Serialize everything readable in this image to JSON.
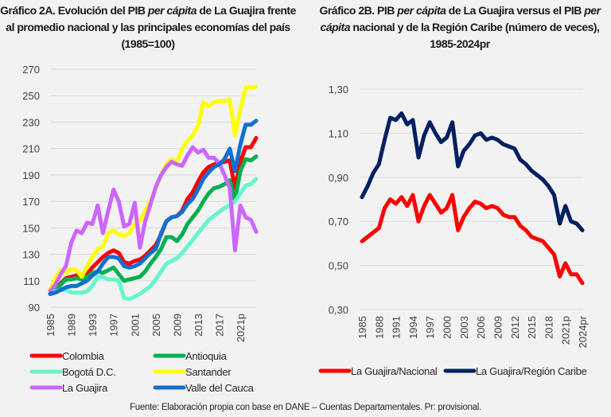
{
  "chart_data": [
    {
      "type": "line",
      "title_parts": [
        "Gráfico 2A. Evolución del PIB ",
        "per cápita",
        " de La Guajira frente al promedio nacional y las principales economías del país (1985=100)"
      ],
      "xlabel": "",
      "ylabel": "",
      "x": [
        1985,
        1986,
        1987,
        1988,
        1989,
        1990,
        1991,
        1992,
        1993,
        1994,
        1995,
        1996,
        1997,
        1998,
        1999,
        2000,
        2001,
        2002,
        2003,
        2004,
        2005,
        2006,
        2007,
        2008,
        2009,
        2010,
        2011,
        2012,
        2013,
        2014,
        2015,
        2016,
        2017,
        2018,
        2019,
        2020,
        2021,
        2022,
        2023,
        2024
      ],
      "xtick_labels": [
        "1985",
        "1989",
        "1993",
        "1997",
        "2001",
        "2005",
        "2009",
        "2013",
        "2017",
        "2021p"
      ],
      "xtick_positions": [
        1985,
        1989,
        1993,
        1997,
        2001,
        2005,
        2009,
        2013,
        2017,
        2021
      ],
      "ylim": [
        90,
        270
      ],
      "yticks": [
        90,
        110,
        130,
        150,
        170,
        190,
        210,
        230,
        250,
        270
      ],
      "ytick_labels": [
        "90",
        "110",
        "130",
        "150",
        "170",
        "190",
        "210",
        "230",
        "250",
        "270"
      ],
      "grid": true,
      "legend_position": "bottom",
      "series": [
        {
          "name": "Colombia",
          "color": "#ff0000",
          "values": [
            100,
            103,
            108,
            112,
            113,
            114,
            112,
            115,
            120,
            124,
            128,
            131,
            133,
            131,
            124,
            123,
            125,
            126,
            129,
            133,
            137,
            145,
            155,
            158,
            159,
            163,
            172,
            177,
            185,
            192,
            196,
            198,
            199,
            200,
            201,
            180,
            200,
            211,
            211,
            218
          ]
        },
        {
          "name": "Antioquia",
          "color": "#00b050",
          "values": [
            100,
            103,
            107,
            111,
            111,
            112,
            111,
            113,
            116,
            117,
            116,
            118,
            120,
            115,
            110,
            111,
            112,
            113,
            117,
            123,
            128,
            134,
            143,
            143,
            140,
            145,
            153,
            158,
            163,
            170,
            176,
            180,
            181,
            183,
            186,
            171,
            193,
            202,
            201,
            204
          ]
        },
        {
          "name": "Bogotá D.C.",
          "color": "#66f5cc",
          "values": [
            100,
            102,
            103,
            103,
            101,
            101,
            101,
            102,
            106,
            113,
            113,
            111,
            111,
            110,
            97,
            96,
            98,
            100,
            103,
            106,
            111,
            117,
            123,
            125,
            127,
            131,
            136,
            141,
            146,
            151,
            156,
            159,
            162,
            165,
            167,
            170,
            176,
            182,
            183,
            187
          ]
        },
        {
          "name": "Santander",
          "color": "#ffff00",
          "values": [
            103,
            112,
            118,
            116,
            119,
            118,
            113,
            121,
            128,
            134,
            136,
            146,
            148,
            145,
            144,
            146,
            153,
            155,
            163,
            170,
            180,
            190,
            198,
            202,
            200,
            210,
            216,
            220,
            227,
            245,
            242,
            245,
            246,
            246,
            247,
            220,
            240,
            256,
            256,
            257
          ]
        },
        {
          "name": "La Guajira",
          "color": "#cc66ff",
          "values": [
            102,
            107,
            115,
            121,
            139,
            148,
            146,
            154,
            153,
            167,
            146,
            163,
            179,
            170,
            151,
            153,
            169,
            135,
            155,
            168,
            181,
            190,
            196,
            200,
            198,
            197,
            205,
            211,
            207,
            209,
            203,
            203,
            199,
            190,
            180,
            133,
            167,
            158,
            156,
            147
          ]
        },
        {
          "name": "Valle del Cauca",
          "color": "#1070d0",
          "values": [
            100,
            101,
            103,
            105,
            106,
            106,
            108,
            110,
            114,
            117,
            123,
            128,
            128,
            127,
            121,
            120,
            121,
            123,
            127,
            131,
            134,
            146,
            155,
            158,
            159,
            162,
            168,
            172,
            179,
            187,
            192,
            196,
            198,
            202,
            210,
            193,
            213,
            228,
            228,
            231
          ]
        }
      ]
    },
    {
      "type": "line",
      "title_parts": [
        "Gráfico 2B. PIB ",
        "per cápita",
        " de La Guajira versus el PIB ",
        "per cápita",
        " nacional y de la Región Caribe (número de veces), 1985-2024pr"
      ],
      "xlabel": "",
      "ylabel": "",
      "x": [
        1985,
        1986,
        1987,
        1988,
        1989,
        1990,
        1991,
        1992,
        1993,
        1994,
        1995,
        1996,
        1997,
        1998,
        1999,
        2000,
        2001,
        2002,
        2003,
        2004,
        2005,
        2006,
        2007,
        2008,
        2009,
        2010,
        2011,
        2012,
        2013,
        2014,
        2015,
        2016,
        2017,
        2018,
        2019,
        2020,
        2021,
        2022,
        2023,
        2024
      ],
      "xtick_labels": [
        "1985",
        "1988",
        "1991",
        "1994",
        "1997",
        "2000",
        "2003",
        "2006",
        "2009",
        "2012",
        "2015",
        "2018",
        "2021p",
        "2024pr"
      ],
      "xtick_positions": [
        1985,
        1988,
        1991,
        1994,
        1997,
        2000,
        2003,
        2006,
        2009,
        2012,
        2015,
        2018,
        2021,
        2024
      ],
      "ylim": [
        0.3,
        1.3
      ],
      "yticks": [
        0.3,
        0.5,
        0.7,
        0.9,
        1.1,
        1.3
      ],
      "ytick_labels": [
        "0,30",
        "0,50",
        "0,70",
        "0,90",
        "1,10",
        "1,30"
      ],
      "grid": true,
      "legend_position": "bottom",
      "series": [
        {
          "name": "La Guajira/Nacional",
          "color": "#ff0000",
          "values": [
            0.61,
            0.63,
            0.65,
            0.67,
            0.76,
            0.8,
            0.78,
            0.81,
            0.77,
            0.82,
            0.7,
            0.77,
            0.82,
            0.78,
            0.74,
            0.76,
            0.82,
            0.66,
            0.72,
            0.76,
            0.79,
            0.78,
            0.76,
            0.77,
            0.76,
            0.73,
            0.72,
            0.72,
            0.68,
            0.66,
            0.63,
            0.62,
            0.61,
            0.58,
            0.55,
            0.45,
            0.51,
            0.46,
            0.46,
            0.42
          ]
        },
        {
          "name": "La Guajira/Región Caribe",
          "color": "#002060",
          "values": [
            0.81,
            0.86,
            0.92,
            0.96,
            1.07,
            1.17,
            1.16,
            1.19,
            1.14,
            1.16,
            0.99,
            1.09,
            1.15,
            1.1,
            1.06,
            1.08,
            1.15,
            0.95,
            1.02,
            1.05,
            1.09,
            1.1,
            1.07,
            1.08,
            1.07,
            1.05,
            1.04,
            1.03,
            0.98,
            0.96,
            0.93,
            0.91,
            0.89,
            0.86,
            0.82,
            0.69,
            0.77,
            0.7,
            0.69,
            0.66
          ]
        }
      ]
    }
  ],
  "source": "Fuente: Elaboración propia con base en DANE – Cuentas Departamentales. Pr: provisional."
}
